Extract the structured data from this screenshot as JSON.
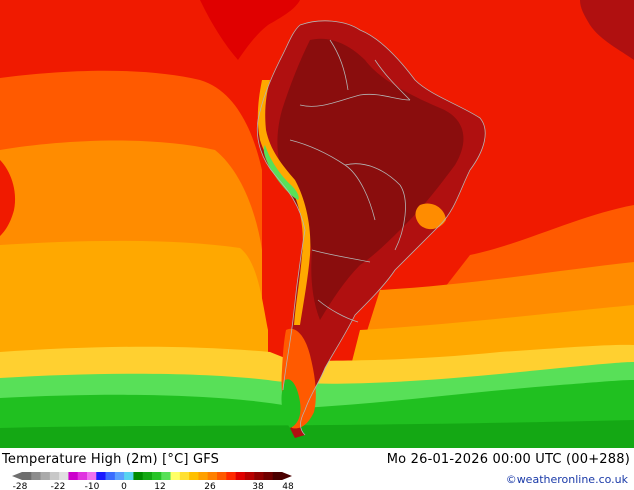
{
  "header": {
    "title": "Temperature High (2m) [°C] GFS",
    "datetime": "Mo 26-01-2026 00:00 UTC (00+288)",
    "credit": "©weatheronline.co.uk"
  },
  "legend": {
    "ticks": [
      "-28",
      "-22",
      "-10",
      "0",
      "12",
      "26",
      "38",
      "48"
    ],
    "colors": [
      "#6e6e6e",
      "#8c8c8c",
      "#aaaaaa",
      "#c8c8c8",
      "#e0e0e0",
      "#cc00cc",
      "#e033e0",
      "#f070f0",
      "#1a1aff",
      "#3a6cff",
      "#5aa0ff",
      "#58d4f0",
      "#008c00",
      "#14a814",
      "#28c428",
      "#58e058",
      "#ffff66",
      "#ffe033",
      "#ffc000",
      "#ffa000",
      "#ff8000",
      "#ff5a00",
      "#ff2a00",
      "#e00000",
      "#b80000",
      "#900000",
      "#700000",
      "#4a0000"
    ]
  },
  "map_colors": {
    "hot_dark": "#8a0d0d",
    "hot": "#b01010",
    "red": "#f01a00",
    "orange_red": "#ff5a00",
    "orange": "#ff8c00",
    "light_orange": "#ffa800",
    "yellow": "#ffd030",
    "green": "#20c020",
    "green_light": "#58e058",
    "border": "#b4b4b4"
  }
}
